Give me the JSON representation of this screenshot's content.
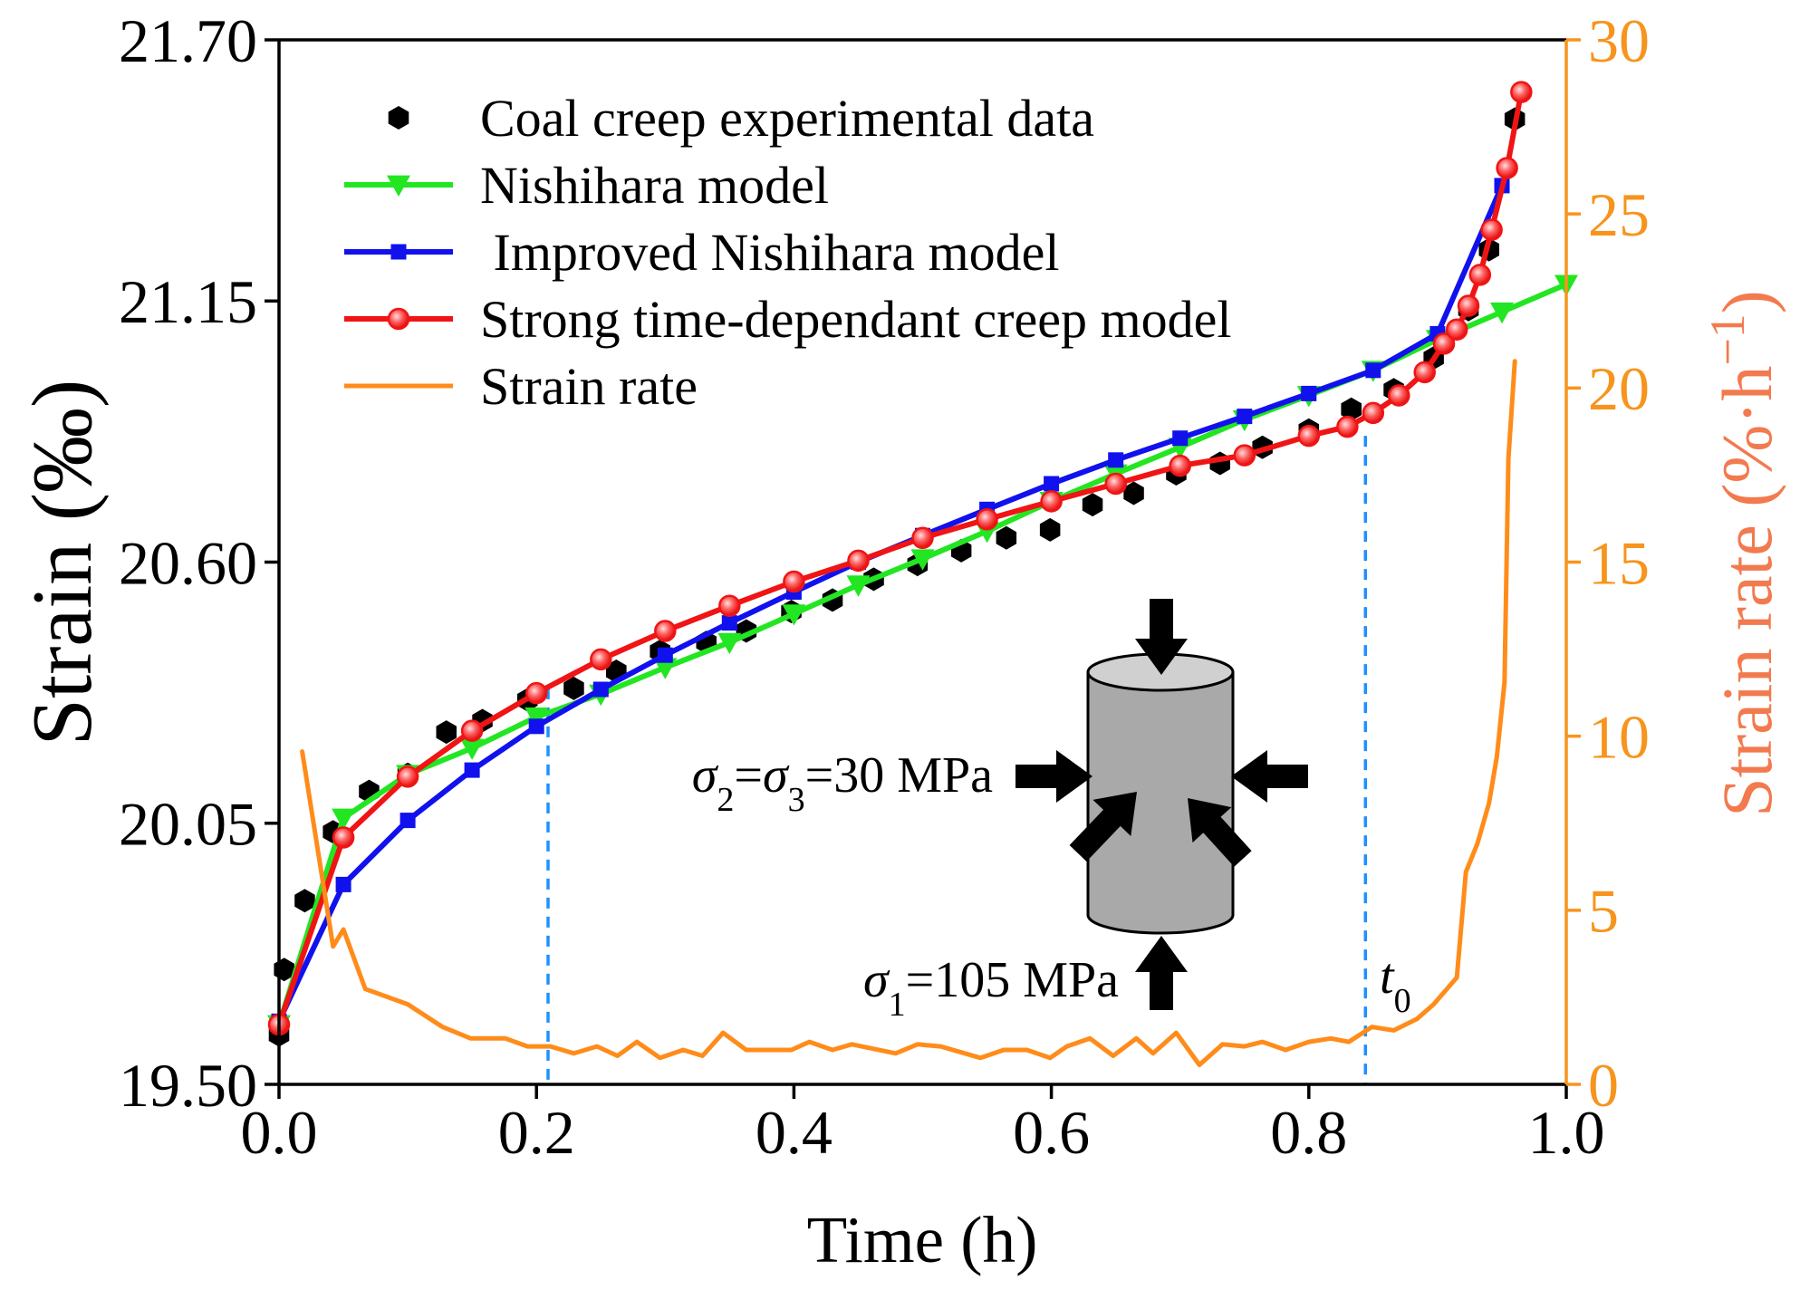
{
  "chart_data": {
    "type": "line",
    "xaxis": {
      "label": "Time (h)",
      "range": [
        0,
        1
      ],
      "ticks": [
        "0.0",
        "0.2",
        "0.4",
        "0.6",
        "0.8",
        "1.0"
      ]
    },
    "yaxis_left": {
      "label": "Strain (‰)",
      "range": [
        19.5,
        21.7
      ],
      "ticks": [
        "19.50",
        "20.05",
        "20.60",
        "21.15",
        "21.70"
      ]
    },
    "yaxis_right": {
      "label": {
        "main": "Strain rate (%·h",
        "sup": "−1",
        "end": ")"
      },
      "range": [
        0,
        30
      ],
      "ticks": [
        "0",
        "5",
        "10",
        "15",
        "20",
        "25",
        "30"
      ],
      "color": "#F7941D",
      "label_color": "#F27A4E"
    },
    "grid": false,
    "legend": {
      "position": "top-left",
      "entries": [
        {
          "series": 0
        },
        {
          "series": 1
        },
        {
          "series": 2
        },
        {
          "series": 3
        },
        {
          "series": 4
        }
      ]
    },
    "series": [
      {
        "key": "experimental",
        "name": "Coal creep experimental data",
        "axis": "left",
        "style": "markers",
        "marker": "hexagon",
        "color": "#000000",
        "x": [
          0.0,
          0.004,
          0.02,
          0.042,
          0.07,
          0.1,
          0.13,
          0.158,
          0.193,
          0.229,
          0.262,
          0.296,
          0.332,
          0.363,
          0.398,
          0.43,
          0.462,
          0.496,
          0.53,
          0.565,
          0.599,
          0.632,
          0.664,
          0.697,
          0.731,
          0.764,
          0.8,
          0.833,
          0.866,
          0.897,
          0.924,
          0.94,
          0.96
        ],
        "y": [
          19.604,
          19.742,
          19.887,
          20.032,
          20.117,
          20.153,
          20.242,
          20.266,
          20.31,
          20.334,
          20.37,
          20.412,
          20.431,
          20.455,
          20.496,
          20.52,
          20.564,
          20.595,
          20.624,
          20.651,
          20.668,
          20.721,
          20.745,
          20.786,
          20.808,
          20.842,
          20.878,
          20.922,
          20.963,
          21.03,
          21.132,
          21.258,
          21.533
        ]
      },
      {
        "key": "nishihara",
        "name": "Nishihara model",
        "axis": "left",
        "style": "line+markers",
        "marker": "triangle-down",
        "color": "#22E622",
        "x": [
          0,
          0.05,
          0.1,
          0.15,
          0.2,
          0.25,
          0.3,
          0.35,
          0.4,
          0.45,
          0.5,
          0.55,
          0.6,
          0.65,
          0.7,
          0.75,
          0.8,
          0.85,
          0.9,
          0.95,
          1.0
        ],
        "y": [
          19.626,
          20.061,
          20.153,
          20.208,
          20.274,
          20.322,
          20.378,
          20.431,
          20.491,
          20.552,
          20.607,
          20.665,
          20.728,
          20.786,
          20.842,
          20.9,
          20.951,
          21.004,
          21.069,
          21.127,
          21.185
        ]
      },
      {
        "key": "improved-nishihara",
        "name": " Improved Nishihara model",
        "axis": "left",
        "style": "line+markers",
        "marker": "square",
        "color": "#1111EE",
        "x": [
          0,
          0.05,
          0.1,
          0.15,
          0.2,
          0.25,
          0.3,
          0.35,
          0.4,
          0.45,
          0.5,
          0.55,
          0.6,
          0.65,
          0.7,
          0.75,
          0.8,
          0.85,
          0.9,
          0.95
        ],
        "y": [
          19.633,
          19.921,
          20.056,
          20.162,
          20.254,
          20.332,
          20.404,
          20.472,
          20.537,
          20.6,
          20.656,
          20.711,
          20.765,
          20.815,
          20.861,
          20.907,
          20.955,
          21.004,
          21.081,
          21.393
        ]
      },
      {
        "key": "strong-time-dependant",
        "name": "Strong time-dependant creep model",
        "axis": "left",
        "style": "line+markers",
        "marker": "circle",
        "color": "#F01414",
        "x": [
          0,
          0.05,
          0.1,
          0.15,
          0.2,
          0.25,
          0.3,
          0.35,
          0.4,
          0.45,
          0.5,
          0.55,
          0.6,
          0.65,
          0.7,
          0.75,
          0.8,
          0.83,
          0.85,
          0.87,
          0.89,
          0.905,
          0.915,
          0.924,
          0.933,
          0.942,
          0.954,
          0.965
        ],
        "y": [
          19.626,
          20.02,
          20.148,
          20.245,
          20.324,
          20.395,
          20.455,
          20.508,
          20.559,
          20.603,
          20.651,
          20.69,
          20.728,
          20.765,
          20.803,
          20.825,
          20.866,
          20.885,
          20.914,
          20.951,
          21.0,
          21.06,
          21.09,
          21.14,
          21.205,
          21.3,
          21.43,
          21.59
        ]
      },
      {
        "key": "strain-rate",
        "name": "Strain rate",
        "axis": "right",
        "style": "line",
        "color": "#FF8C1A",
        "x": [
          0.018,
          0.042,
          0.05,
          0.067,
          0.1,
          0.127,
          0.149,
          0.176,
          0.193,
          0.211,
          0.229,
          0.247,
          0.263,
          0.278,
          0.296,
          0.314,
          0.329,
          0.345,
          0.363,
          0.398,
          0.412,
          0.43,
          0.445,
          0.479,
          0.496,
          0.514,
          0.545,
          0.563,
          0.581,
          0.599,
          0.612,
          0.63,
          0.648,
          0.666,
          0.679,
          0.697,
          0.715,
          0.733,
          0.75,
          0.764,
          0.782,
          0.8,
          0.817,
          0.831,
          0.849,
          0.866,
          0.884,
          0.897,
          0.915,
          0.922,
          0.931,
          0.94,
          0.946,
          0.952,
          0.955,
          0.96
        ],
        "y": [
          9.56,
          3.96,
          4.45,
          2.74,
          2.3,
          1.65,
          1.32,
          1.32,
          1.09,
          1.09,
          0.89,
          1.09,
          0.82,
          1.22,
          0.76,
          0.99,
          0.82,
          1.48,
          0.99,
          0.99,
          1.22,
          0.99,
          1.15,
          0.89,
          1.15,
          1.09,
          0.76,
          0.99,
          0.99,
          0.76,
          1.09,
          1.32,
          0.82,
          1.32,
          0.89,
          1.48,
          0.56,
          1.15,
          1.09,
          1.22,
          0.99,
          1.22,
          1.32,
          1.22,
          1.65,
          1.55,
          1.88,
          2.3,
          3.07,
          6.1,
          6.92,
          8.08,
          9.4,
          11.54,
          17.97,
          20.77
        ]
      }
    ],
    "reference_lines": [
      {
        "x": 0.209,
        "from_strain": 20.334,
        "style": "dashed",
        "color": "#1E90FF"
      },
      {
        "x": 0.844,
        "from_strain": 20.866,
        "style": "dashed",
        "color": "#1E90FF"
      }
    ],
    "annotations": {
      "lateral_stress": [
        {
          "text": "σ",
          "style": "italic"
        },
        {
          "text": "2",
          "style": "sub"
        },
        {
          "text": "=",
          "style": "normal"
        },
        {
          "text": "σ",
          "style": "italic"
        },
        {
          "text": "3",
          "style": "sub"
        },
        {
          "text": "=30 MPa",
          "style": "normal"
        }
      ],
      "axial_stress": [
        {
          "text": "σ",
          "style": "italic"
        },
        {
          "text": "1",
          "style": "sub"
        },
        {
          "text": "=105 MPa",
          "style": "normal"
        }
      ],
      "t0": [
        {
          "text": "t",
          "style": "italic"
        },
        {
          "text": "0",
          "style": "sub"
        }
      ]
    },
    "inset_colors": {
      "body": "#A9A9A9",
      "top": "#D0D0D0",
      "outline": "#000000",
      "arrows": "#000000"
    }
  }
}
